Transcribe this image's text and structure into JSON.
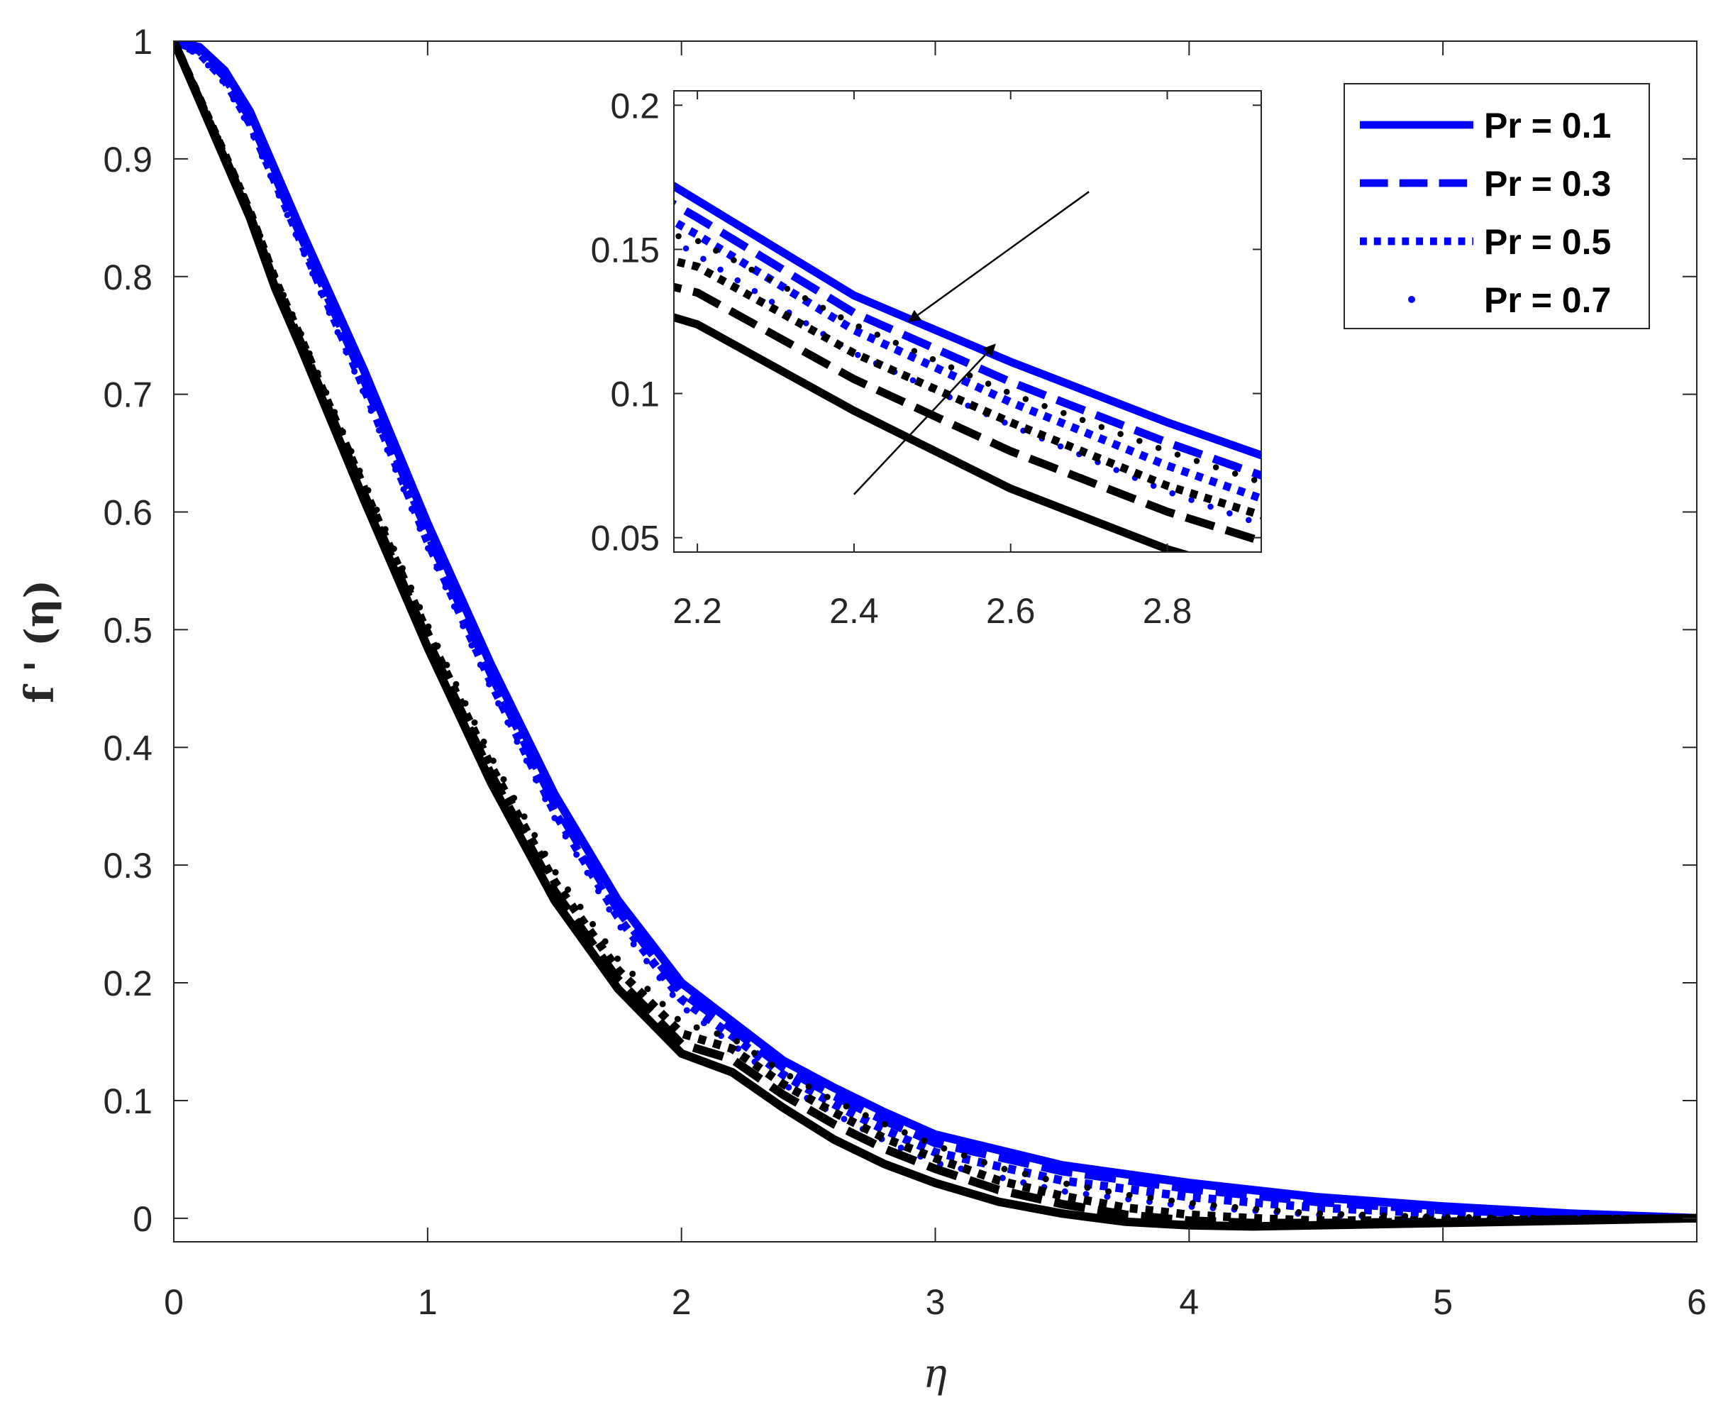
{
  "chart_data": {
    "type": "line",
    "title": "",
    "xlabel": "η",
    "ylabel": "f ' (η)",
    "xlim": [
      0,
      6
    ],
    "ylim": [
      -0.02,
      1
    ],
    "x_ticks": [
      "0",
      "1",
      "2",
      "3",
      "4",
      "5",
      "6"
    ],
    "y_ticks": [
      "0",
      "0.1",
      "0.2",
      "0.3",
      "0.4",
      "0.5",
      "0.6",
      "0.7",
      "0.8",
      "0.9",
      "1"
    ],
    "grid": false,
    "legend_position": "top-right",
    "legend": [
      {
        "label": "Pr = 0.1",
        "style": "solid",
        "color": "#0000ff"
      },
      {
        "label": "Pr = 0.3",
        "style": "dashed",
        "color": "#0000ff"
      },
      {
        "label": "Pr = 0.5",
        "style": "dotted",
        "color": "#0000ff"
      },
      {
        "label": "Pr = 0.7",
        "style": "dots",
        "color": "#0000ff"
      }
    ],
    "series": [
      {
        "group": "blue",
        "style": "solid",
        "color": "#0000ff",
        "x": [
          0,
          0.1,
          0.2,
          0.3,
          0.4,
          0.5,
          0.75,
          1.0,
          1.25,
          1.5,
          1.75,
          2.0,
          2.2,
          2.4,
          2.6,
          2.8,
          3.0,
          3.5,
          4.0,
          4.5,
          5.0,
          5.5,
          6.0
        ],
        "y": [
          1,
          0.995,
          0.975,
          0.94,
          0.89,
          0.84,
          0.72,
          0.59,
          0.47,
          0.36,
          0.27,
          0.2,
          0.167,
          0.134,
          0.111,
          0.09,
          0.071,
          0.045,
          0.03,
          0.018,
          0.01,
          0.004,
          0
        ]
      },
      {
        "group": "blue",
        "style": "dashed",
        "color": "#0000ff",
        "x": [
          0,
          0.1,
          0.2,
          0.3,
          0.4,
          0.5,
          0.75,
          1.0,
          1.25,
          1.5,
          1.75,
          2.0,
          2.2,
          2.4,
          2.6,
          2.8,
          3.0,
          3.5,
          4.0,
          4.5,
          5.0,
          5.5,
          6.0
        ],
        "y": [
          1,
          0.992,
          0.97,
          0.935,
          0.885,
          0.835,
          0.712,
          0.582,
          0.462,
          0.352,
          0.262,
          0.192,
          0.161,
          0.128,
          0.104,
          0.083,
          0.064,
          0.04,
          0.025,
          0.014,
          0.007,
          0.003,
          0
        ]
      },
      {
        "group": "blue",
        "style": "dotted",
        "color": "#0000ff",
        "x": [
          0,
          0.1,
          0.2,
          0.3,
          0.4,
          0.5,
          0.75,
          1.0,
          1.25,
          1.5,
          1.75,
          2.0,
          2.2,
          2.4,
          2.6,
          2.8,
          3.0,
          3.5,
          4.0,
          4.5,
          5.0,
          5.5,
          6.0
        ],
        "y": [
          1,
          0.99,
          0.967,
          0.93,
          0.88,
          0.83,
          0.705,
          0.575,
          0.455,
          0.345,
          0.256,
          0.186,
          0.155,
          0.122,
          0.097,
          0.075,
          0.056,
          0.032,
          0.018,
          0.009,
          0.004,
          0.001,
          0
        ]
      },
      {
        "group": "blue",
        "style": "dots",
        "color": "#0000ff",
        "x": [
          0,
          0.1,
          0.2,
          0.3,
          0.4,
          0.5,
          0.75,
          1.0,
          1.25,
          1.5,
          1.75,
          2.0,
          2.2,
          2.4,
          2.6,
          2.8,
          3.0,
          3.5,
          4.0,
          4.5,
          5.0,
          5.5,
          6.0
        ],
        "y": [
          1,
          0.988,
          0.964,
          0.926,
          0.876,
          0.826,
          0.7,
          0.57,
          0.45,
          0.34,
          0.25,
          0.18,
          0.148,
          0.114,
          0.089,
          0.066,
          0.047,
          0.023,
          0.01,
          0.003,
          0,
          -0.002,
          0
        ]
      },
      {
        "group": "black",
        "style": "solid",
        "color": "#000000",
        "x": [
          0,
          0.1,
          0.2,
          0.3,
          0.4,
          0.5,
          0.75,
          1.0,
          1.25,
          1.5,
          1.75,
          2.0,
          2.2,
          2.4,
          2.6,
          2.8,
          3.0,
          3.25,
          3.5,
          3.75,
          4.0,
          4.25,
          4.5,
          5.0,
          5.5,
          6.0
        ],
        "y": [
          1,
          0.95,
          0.9,
          0.85,
          0.79,
          0.74,
          0.61,
          0.485,
          0.37,
          0.27,
          0.195,
          0.14,
          0.124,
          0.094,
          0.067,
          0.046,
          0.03,
          0.014,
          0.004,
          -0.003,
          -0.006,
          -0.007,
          -0.006,
          -0.004,
          -0.002,
          0
        ]
      },
      {
        "group": "black",
        "style": "dashed",
        "color": "#000000",
        "x": [
          0,
          0.1,
          0.2,
          0.3,
          0.4,
          0.5,
          0.75,
          1.0,
          1.25,
          1.5,
          1.75,
          2.0,
          2.2,
          2.4,
          2.6,
          2.8,
          3.0,
          3.25,
          3.5,
          3.75,
          4.0,
          4.25,
          4.5,
          5.0,
          5.5,
          6.0
        ],
        "y": [
          1,
          0.951,
          0.902,
          0.852,
          0.793,
          0.744,
          0.615,
          0.491,
          0.377,
          0.278,
          0.203,
          0.148,
          0.135,
          0.105,
          0.08,
          0.059,
          0.042,
          0.024,
          0.012,
          0.003,
          -0.002,
          -0.004,
          -0.004,
          -0.003,
          -0.001,
          0
        ]
      },
      {
        "group": "black",
        "style": "dotted",
        "color": "#000000",
        "x": [
          0,
          0.1,
          0.2,
          0.3,
          0.4,
          0.5,
          0.75,
          1.0,
          1.25,
          1.5,
          1.75,
          2.0,
          2.2,
          2.4,
          2.6,
          2.8,
          3.0,
          3.25,
          3.5,
          3.75,
          4.0,
          4.25,
          4.5,
          5.0,
          5.5,
          6.0
        ],
        "y": [
          1,
          0.952,
          0.904,
          0.855,
          0.797,
          0.748,
          0.62,
          0.497,
          0.384,
          0.286,
          0.211,
          0.157,
          0.144,
          0.114,
          0.09,
          0.068,
          0.051,
          0.032,
          0.019,
          0.009,
          0.003,
          0,
          -0.002,
          -0.002,
          -0.001,
          0
        ]
      },
      {
        "group": "black",
        "style": "dots",
        "color": "#000000",
        "x": [
          0,
          0.1,
          0.2,
          0.3,
          0.4,
          0.5,
          0.75,
          1.0,
          1.25,
          1.5,
          1.75,
          2.0,
          2.2,
          2.4,
          2.6,
          2.8,
          3.0,
          3.25,
          3.5,
          3.75,
          4.0,
          4.25,
          4.5,
          5.0,
          5.5,
          6.0
        ],
        "y": [
          1,
          0.953,
          0.906,
          0.858,
          0.8,
          0.752,
          0.626,
          0.504,
          0.392,
          0.295,
          0.22,
          0.166,
          0.153,
          0.124,
          0.1,
          0.08,
          0.062,
          0.043,
          0.03,
          0.02,
          0.013,
          0.008,
          0.004,
          0.001,
          0,
          0
        ]
      }
    ],
    "annotations": [
      {
        "type": "arrow",
        "from": [
          2.7,
          0.17
        ],
        "to": [
          2.47,
          0.125
        ]
      },
      {
        "type": "arrow",
        "from": [
          2.4,
          0.065
        ],
        "to": [
          2.58,
          0.117
        ]
      }
    ],
    "inset": {
      "xlim": [
        2.17,
        2.92
      ],
      "ylim": [
        0.045,
        0.205
      ],
      "x_ticks": [
        "2.2",
        "2.4",
        "2.6",
        "2.8"
      ],
      "y_ticks": [
        "0.05",
        "0.1",
        "0.15",
        "0.2"
      ]
    }
  }
}
